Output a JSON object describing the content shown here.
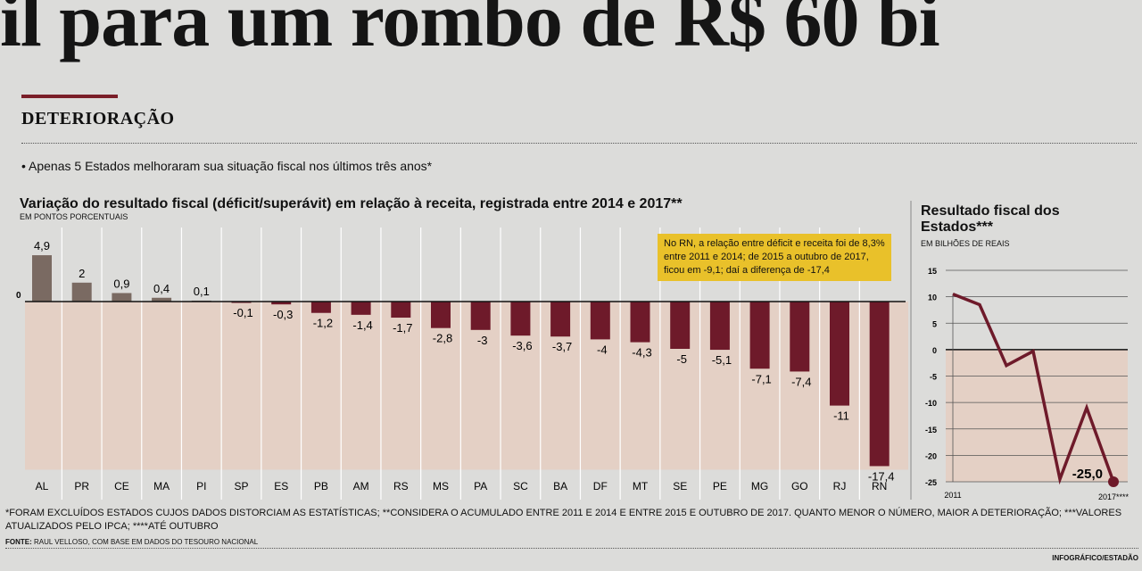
{
  "headline": "il para um rombo de R$ 60 bi",
  "section": "DETERIORAÇÃO",
  "bullet": "• Apenas 5 Estados melhoraram sua situação fiscal nos últimos três anos*",
  "annotation": "No RN, a relação entre déficit e receita foi de 8,3% entre 2011 e 2014; de 2015 a outubro de 2017, ficou em -9,1; daí a diferença de -17,4",
  "footnote": "*FORAM EXCLUÍDOS ESTADOS CUJOS DADOS DISTORCIAM AS ESTATÍSTICAS; **CONSIDERA O ACUMULADO ENTRE 2011 E 2014 E ENTRE 2015 E OUTUBRO DE 2017. QUANTO MENOR O NÚMERO, MAIOR A DETERIORAÇÃO; ***VALORES ATUALIZADOS PELO IPCA; ****ATÉ OUTUBRO",
  "source_label": "FONTE:",
  "source": "RAUL VELLOSO, COM BASE EM DADOS DO TESOURO NACIONAL",
  "credit": "INFOGRÁFICO/ESTADÃO",
  "colors": {
    "bar_negative": "#6e1a2a",
    "bar_positive": "#7a6a62",
    "shade": "#e6cdbf",
    "line": "#6e1a2a",
    "highlight": "#e9c12a"
  },
  "chart_data": [
    {
      "type": "bar",
      "title": "Variação do resultado fiscal (déficit/superávit) em relação à receita, registrada entre 2014 e 2017**",
      "ylabel": "EM PONTOS PORCENTUAIS",
      "ytick": "0",
      "categories": [
        "AL",
        "PR",
        "CE",
        "MA",
        "PI",
        "SP",
        "ES",
        "PB",
        "AM",
        "RS",
        "MS",
        "PA",
        "SC",
        "BA",
        "DF",
        "MT",
        "SE",
        "PE",
        "MG",
        "GO",
        "RJ",
        "RN"
      ],
      "values": [
        4.9,
        2,
        0.9,
        0.4,
        0.1,
        -0.1,
        -0.3,
        -1.2,
        -1.4,
        -1.7,
        -2.8,
        -3,
        -3.6,
        -3.7,
        -4,
        -4.3,
        -5,
        -5.1,
        -7.1,
        -7.4,
        -11,
        -17.4
      ],
      "labels": [
        "4,9",
        "2",
        "0,9",
        "0,4",
        "0,1",
        "-0,1",
        "-0,3",
        "-1,2",
        "-1,4",
        "-1,7",
        "-2,8",
        "-3",
        "-3,6",
        "-3,7",
        "-4",
        "-4,3",
        "-5",
        "-5,1",
        "-7,1",
        "-7,4",
        "-11",
        "-17,4"
      ]
    },
    {
      "type": "line",
      "title": "Resultado fiscal dos Estados***",
      "ylabel": "EM BILHÕES DE REAIS",
      "ylim": [
        -25,
        15
      ],
      "yticks": [
        15,
        10,
        5,
        0,
        -5,
        -10,
        -15,
        -20,
        -25
      ],
      "grid": true,
      "x": [
        2011,
        2012,
        2013,
        2014,
        2015,
        2016,
        2017
      ],
      "xtick_labels": [
        "2011",
        "2017****"
      ],
      "values": [
        10.5,
        8.5,
        -3,
        -0.3,
        -24.5,
        -11,
        -25.0
      ],
      "end_label": "-25,0"
    }
  ]
}
